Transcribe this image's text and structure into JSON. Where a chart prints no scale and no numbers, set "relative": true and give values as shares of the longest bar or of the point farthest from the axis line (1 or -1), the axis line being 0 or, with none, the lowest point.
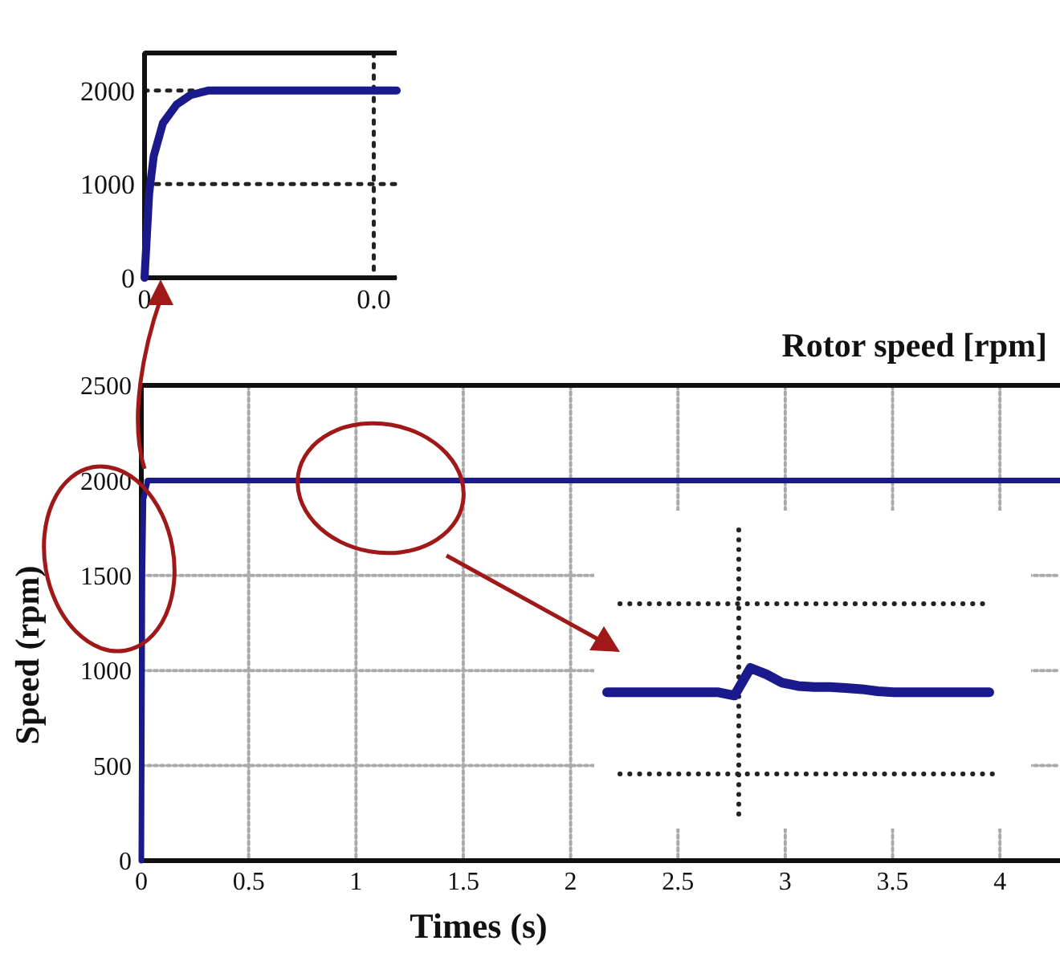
{
  "chart_data": [
    {
      "type": "line",
      "xlim": [
        0,
        0.055
      ],
      "ylim": [
        0,
        2400
      ],
      "xticks": [
        0,
        {
          "value": 0.05,
          "label": "0.0"
        }
      ],
      "yticks": [
        0,
        1000,
        2000
      ],
      "grid": true,
      "series": [
        {
          "color": "#1a1a8c",
          "x": [
            0,
            0.001,
            0.002,
            0.004,
            0.007,
            0.01,
            0.014,
            0.055
          ],
          "values": [
            0,
            900,
            1300,
            1650,
            1850,
            1950,
            2000,
            2000
          ]
        }
      ]
    },
    {
      "type": "line",
      "title": "Rotor speed [rpm]",
      "xlabel": "Times (s)",
      "ylabel": "Speed (rpm)",
      "xlim": [
        0,
        4.28
      ],
      "ylim": [
        0,
        2500
      ],
      "xticks": [
        0,
        0.5,
        1,
        1.5,
        2,
        2.5,
        3,
        3.5,
        4
      ],
      "yticks": [
        0,
        500,
        1000,
        1500,
        2000,
        2500
      ],
      "grid": true,
      "series": [
        {
          "color": "#1a1a8c",
          "x": [
            0,
            0.005,
            0.01,
            0.03,
            4.28
          ],
          "values": [
            0,
            1500,
            1900,
            2000,
            2000
          ]
        }
      ]
    },
    {
      "type": "line",
      "relative": true,
      "categories": [
        null,
        null,
        null,
        null,
        null,
        null,
        null,
        null,
        null,
        null,
        null,
        null,
        null,
        null,
        null,
        null,
        null,
        null,
        null,
        null,
        null,
        null,
        null,
        null,
        null
      ],
      "series": [
        {
          "color": "#1a1a8c",
          "values": [
            0.77,
            0.77,
            0.77,
            0.77,
            0.77,
            0.77,
            0.77,
            0.77,
            0.74,
            1,
            0.94,
            0.86,
            0.83,
            0.82,
            0.82,
            0.81,
            0.8,
            0.78,
            0.77,
            0.77,
            0.77,
            0.77,
            0.77,
            0.77,
            0.77
          ]
        }
      ]
    }
  ]
}
